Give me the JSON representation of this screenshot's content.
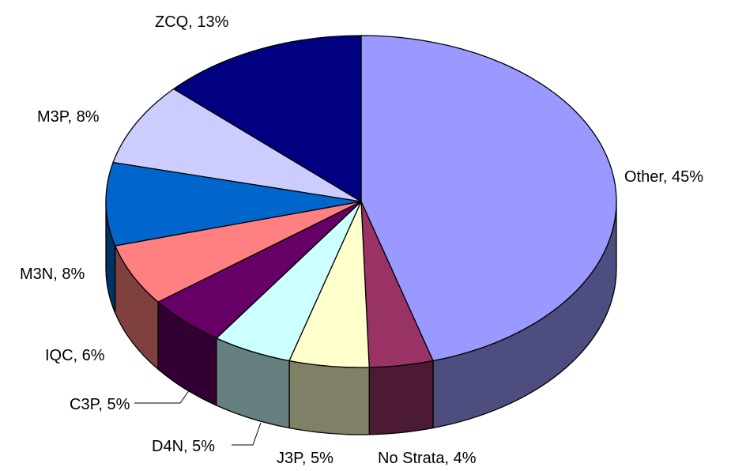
{
  "chart_data": {
    "type": "pie",
    "labels": [
      "Other, 45%",
      "No Strata, 4%",
      "J3P, 5%",
      "D4N, 5%",
      "C3P, 5%",
      "IQC, 6%",
      "M3N, 8%",
      "M3P, 8%",
      "ZCQ, 13%"
    ],
    "values": [
      45,
      4,
      5,
      5,
      5,
      6,
      8,
      8,
      13
    ],
    "colors": [
      "#9999ff",
      "#993366",
      "#ffffcc",
      "#ccffff",
      "#660066",
      "#ff8080",
      "#0066cc",
      "#ccccff",
      "#000080"
    ]
  }
}
